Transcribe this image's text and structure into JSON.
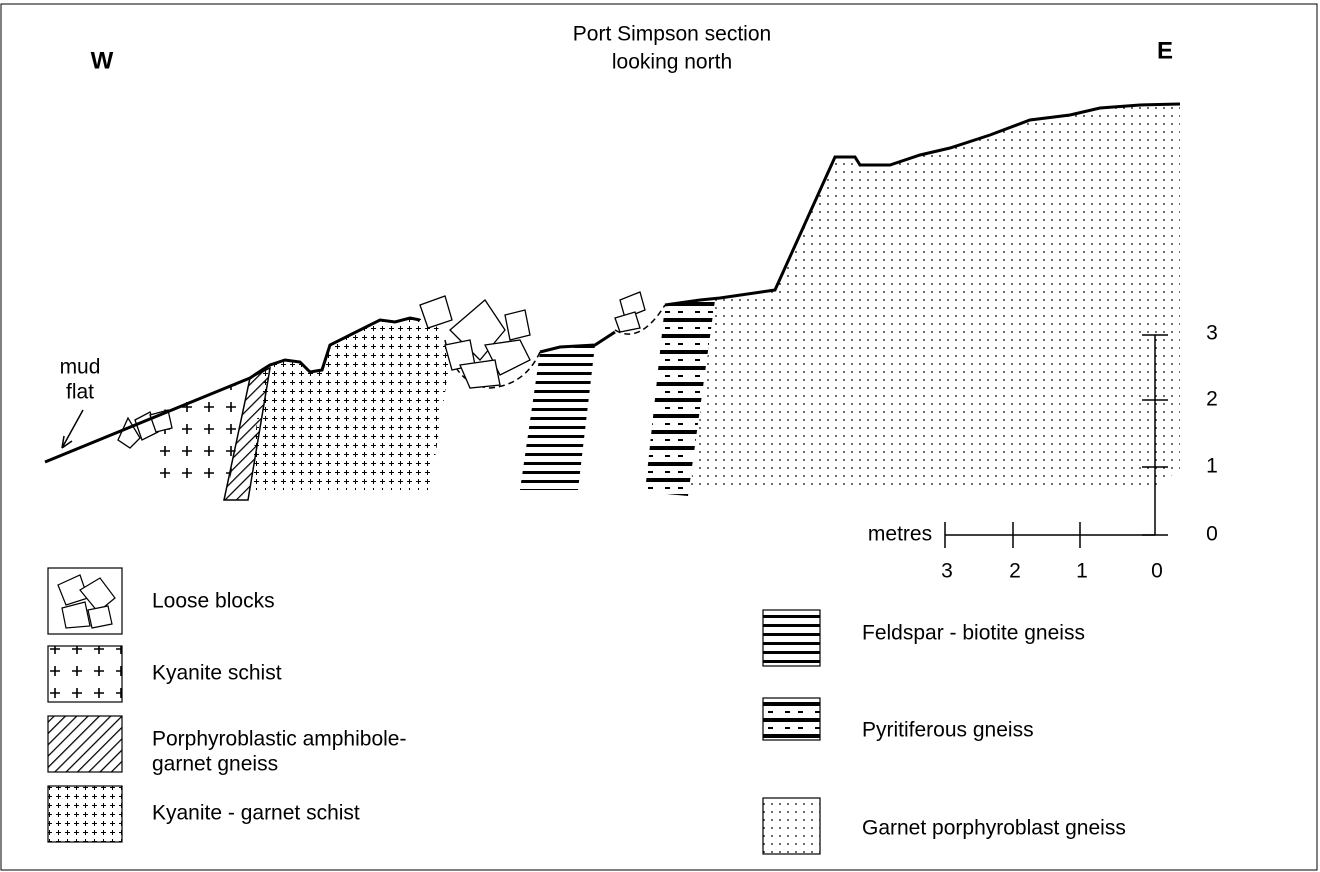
{
  "title": [
    "Port Simpson section",
    "looking north"
  ],
  "directions": {
    "west": "W",
    "east": "E"
  },
  "annotation": [
    "mud",
    "flat"
  ],
  "vertical_scale": {
    "ticks": [
      "3",
      "2",
      "1",
      "0"
    ]
  },
  "horizontal_scale": {
    "label": "metres",
    "ticks": [
      "3",
      "2",
      "1",
      "0"
    ]
  },
  "legend": [
    {
      "label": [
        "Loose blocks"
      ]
    },
    {
      "label": [
        "Kyanite schist"
      ]
    },
    {
      "label": [
        "Porphyroblastic amphibole-",
        "garnet gneiss"
      ]
    },
    {
      "label": [
        "Kyanite - garnet schist"
      ]
    },
    {
      "label": [
        "Feldspar - biotite gneiss"
      ]
    },
    {
      "label": [
        "Pyritiferous gneiss"
      ]
    },
    {
      "label": [
        "Garnet porphyroblast gneiss"
      ]
    }
  ]
}
